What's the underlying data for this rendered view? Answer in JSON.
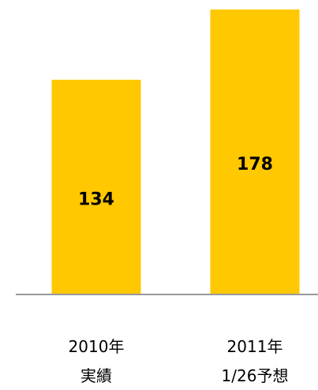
{
  "chart_data": {
    "type": "bar",
    "categories": [
      "2010年\n実績",
      "2011年\n1/26予想"
    ],
    "values": [
      134,
      178
    ],
    "color": "#ffc800"
  }
}
